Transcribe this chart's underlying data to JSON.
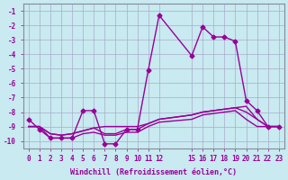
{
  "bg_color": "#c8eaf0",
  "grid_color": "#aaaacc",
  "line_color": "#990099",
  "marker_color": "#990099",
  "xlabel": "Windchill (Refroidissement éolien,°C)",
  "ylabel_ticks": [
    "-1",
    "-2",
    "-3",
    "-4",
    "-5",
    "-6",
    "-7",
    "-8",
    "-9",
    "-10"
  ],
  "xticks": [
    0,
    1,
    2,
    3,
    4,
    5,
    6,
    7,
    8,
    9,
    10,
    11,
    12,
    15,
    16,
    17,
    18,
    19,
    20,
    21,
    22,
    23
  ],
  "xlim": [
    -0.5,
    23.5
  ],
  "ylim": [
    -10.5,
    -0.5
  ],
  "series1_x": [
    0,
    1,
    2,
    3,
    4,
    5,
    6,
    7,
    8,
    9,
    10,
    11,
    12,
    15,
    16,
    17,
    18,
    19,
    20,
    21,
    22,
    23
  ],
  "series1_y": [
    -8.5,
    -9.2,
    -9.8,
    -9.8,
    -9.8,
    -7.9,
    -7.9,
    -10.2,
    -10.2,
    -9.2,
    -9.2,
    -5.1,
    -1.3,
    -4.1,
    -2.1,
    -2.8,
    -2.8,
    -3.1,
    -7.2,
    -7.9,
    -9.0,
    -9.0
  ],
  "series2_x": [
    0,
    1,
    2,
    3,
    4,
    5,
    6,
    7,
    8,
    9,
    10,
    11,
    12,
    15,
    16,
    17,
    18,
    19,
    20,
    21,
    22,
    23
  ],
  "series2_y": [
    -9.0,
    -9.0,
    -9.5,
    -9.6,
    -9.5,
    -9.3,
    -9.1,
    -9.0,
    -9.0,
    -9.0,
    -9.0,
    -8.8,
    -8.5,
    -8.2,
    -8.0,
    -7.9,
    -7.8,
    -7.7,
    -7.6,
    -8.5,
    -9.0,
    -9.0
  ],
  "series3_x": [
    0,
    1,
    2,
    3,
    4,
    5,
    6,
    7,
    8,
    9,
    10,
    11,
    12,
    15,
    16,
    17,
    18,
    19,
    20,
    21,
    22,
    23
  ],
  "series3_y": [
    -9.0,
    -9.0,
    -9.5,
    -9.6,
    -9.5,
    -9.3,
    -9.1,
    -9.5,
    -9.5,
    -9.2,
    -9.2,
    -8.8,
    -8.5,
    -8.2,
    -8.0,
    -7.9,
    -7.8,
    -7.7,
    -8.0,
    -8.5,
    -9.0,
    -9.0
  ],
  "series4_x": [
    0,
    1,
    2,
    3,
    4,
    5,
    6,
    7,
    8,
    9,
    10,
    11,
    12,
    15,
    16,
    17,
    18,
    19,
    20,
    21,
    22,
    23
  ],
  "series4_y": [
    -9.0,
    -9.0,
    -9.8,
    -9.8,
    -9.8,
    -9.5,
    -9.4,
    -9.6,
    -9.6,
    -9.4,
    -9.4,
    -9.0,
    -8.7,
    -8.5,
    -8.2,
    -8.1,
    -8.0,
    -7.9,
    -8.5,
    -9.0,
    -9.0,
    -9.0
  ]
}
